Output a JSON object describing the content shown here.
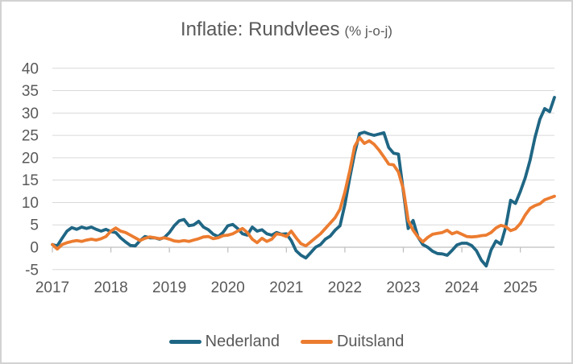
{
  "title": {
    "main": "Inflatie: Rundvlees",
    "unit": "(% j-o-j)"
  },
  "colors": {
    "nederland_line": "#1f6684",
    "duitsland_line": "#ec7c30",
    "text": "#595959",
    "gridline": "#d9d9d9",
    "axis": "#bfbfbf",
    "background": "#ffffff",
    "border": "#d2d2d2"
  },
  "legend": {
    "position": "bottom-center"
  },
  "chart_data": {
    "type": "line",
    "title": "Inflatie: Rundvlees (% j-o-j)",
    "x_unit": "month",
    "x_start": "2017-01",
    "x_end": "2025-08",
    "x_tick_labels": [
      "2017",
      "2018",
      "2019",
      "2020",
      "2021",
      "2022",
      "2023",
      "2024",
      "2025"
    ],
    "y_ticks": [
      40,
      35,
      30,
      25,
      20,
      15,
      10,
      5,
      0,
      -5
    ],
    "ylim": [
      -5,
      40
    ],
    "grid": true,
    "legend_position": "bottom",
    "series": [
      {
        "name": "Nederland",
        "color": "#1f6684",
        "values": [
          0.6,
          0.3,
          2.0,
          3.6,
          4.4,
          4.0,
          4.5,
          4.2,
          4.5,
          4.0,
          3.6,
          4.0,
          3.5,
          3.3,
          2.1,
          1.2,
          0.4,
          0.3,
          1.5,
          2.4,
          2.1,
          2.1,
          1.8,
          2.2,
          3.3,
          4.8,
          5.9,
          6.2,
          4.8,
          5.0,
          5.8,
          4.5,
          3.9,
          2.9,
          2.4,
          3.3,
          4.8,
          5.1,
          4.2,
          3.0,
          2.7,
          4.5,
          3.6,
          3.9,
          3.0,
          2.7,
          3.3,
          2.9,
          3.0,
          1.5,
          -0.8,
          -1.8,
          -2.4,
          -1.2,
          0.0,
          0.6,
          1.8,
          2.5,
          3.8,
          4.8,
          9.5,
          15.5,
          21.0,
          25.4,
          25.7,
          25.3,
          25.0,
          25.3,
          25.6,
          22.3,
          21.0,
          20.8,
          12.5,
          4.2,
          6.0,
          2.3,
          0.6,
          0.0,
          -0.9,
          -1.4,
          -1.5,
          -1.8,
          -0.7,
          0.5,
          0.9,
          0.9,
          0.4,
          -0.8,
          -2.9,
          -4.2,
          -0.6,
          1.4,
          0.7,
          4.5,
          10.5,
          9.8,
          12.5,
          15.5,
          19.5,
          24.5,
          28.6,
          31.0,
          30.3,
          33.5
        ]
      },
      {
        "name": "Duitsland",
        "color": "#ec7c30",
        "values": [
          0.6,
          -0.4,
          0.6,
          1.0,
          1.3,
          1.5,
          1.3,
          1.6,
          1.8,
          1.6,
          1.9,
          2.4,
          3.6,
          4.3,
          3.6,
          3.3,
          2.7,
          2.1,
          1.5,
          2.0,
          2.3,
          2.1,
          1.9,
          2.1,
          1.8,
          1.4,
          1.3,
          1.5,
          1.3,
          1.6,
          1.9,
          2.3,
          2.4,
          1.9,
          2.1,
          2.6,
          2.7,
          3.0,
          3.6,
          4.2,
          3.3,
          1.8,
          1.0,
          2.0,
          1.3,
          1.8,
          3.0,
          2.8,
          2.4,
          3.6,
          2.1,
          0.8,
          0.3,
          1.2,
          2.1,
          3.0,
          4.2,
          5.4,
          6.6,
          8.5,
          12.3,
          17.1,
          22.5,
          24.5,
          23.2,
          23.8,
          23.0,
          21.7,
          20.2,
          18.6,
          18.4,
          16.8,
          13.0,
          6.0,
          3.8,
          2.3,
          1.2,
          2.2,
          2.9,
          3.1,
          3.3,
          3.8,
          3.0,
          3.4,
          2.9,
          2.4,
          2.3,
          2.4,
          2.6,
          2.7,
          3.3,
          4.3,
          4.9,
          4.6,
          3.7,
          4.1,
          5.3,
          7.2,
          8.7,
          9.3,
          9.7,
          10.6,
          11.0,
          11.4
        ]
      }
    ]
  }
}
